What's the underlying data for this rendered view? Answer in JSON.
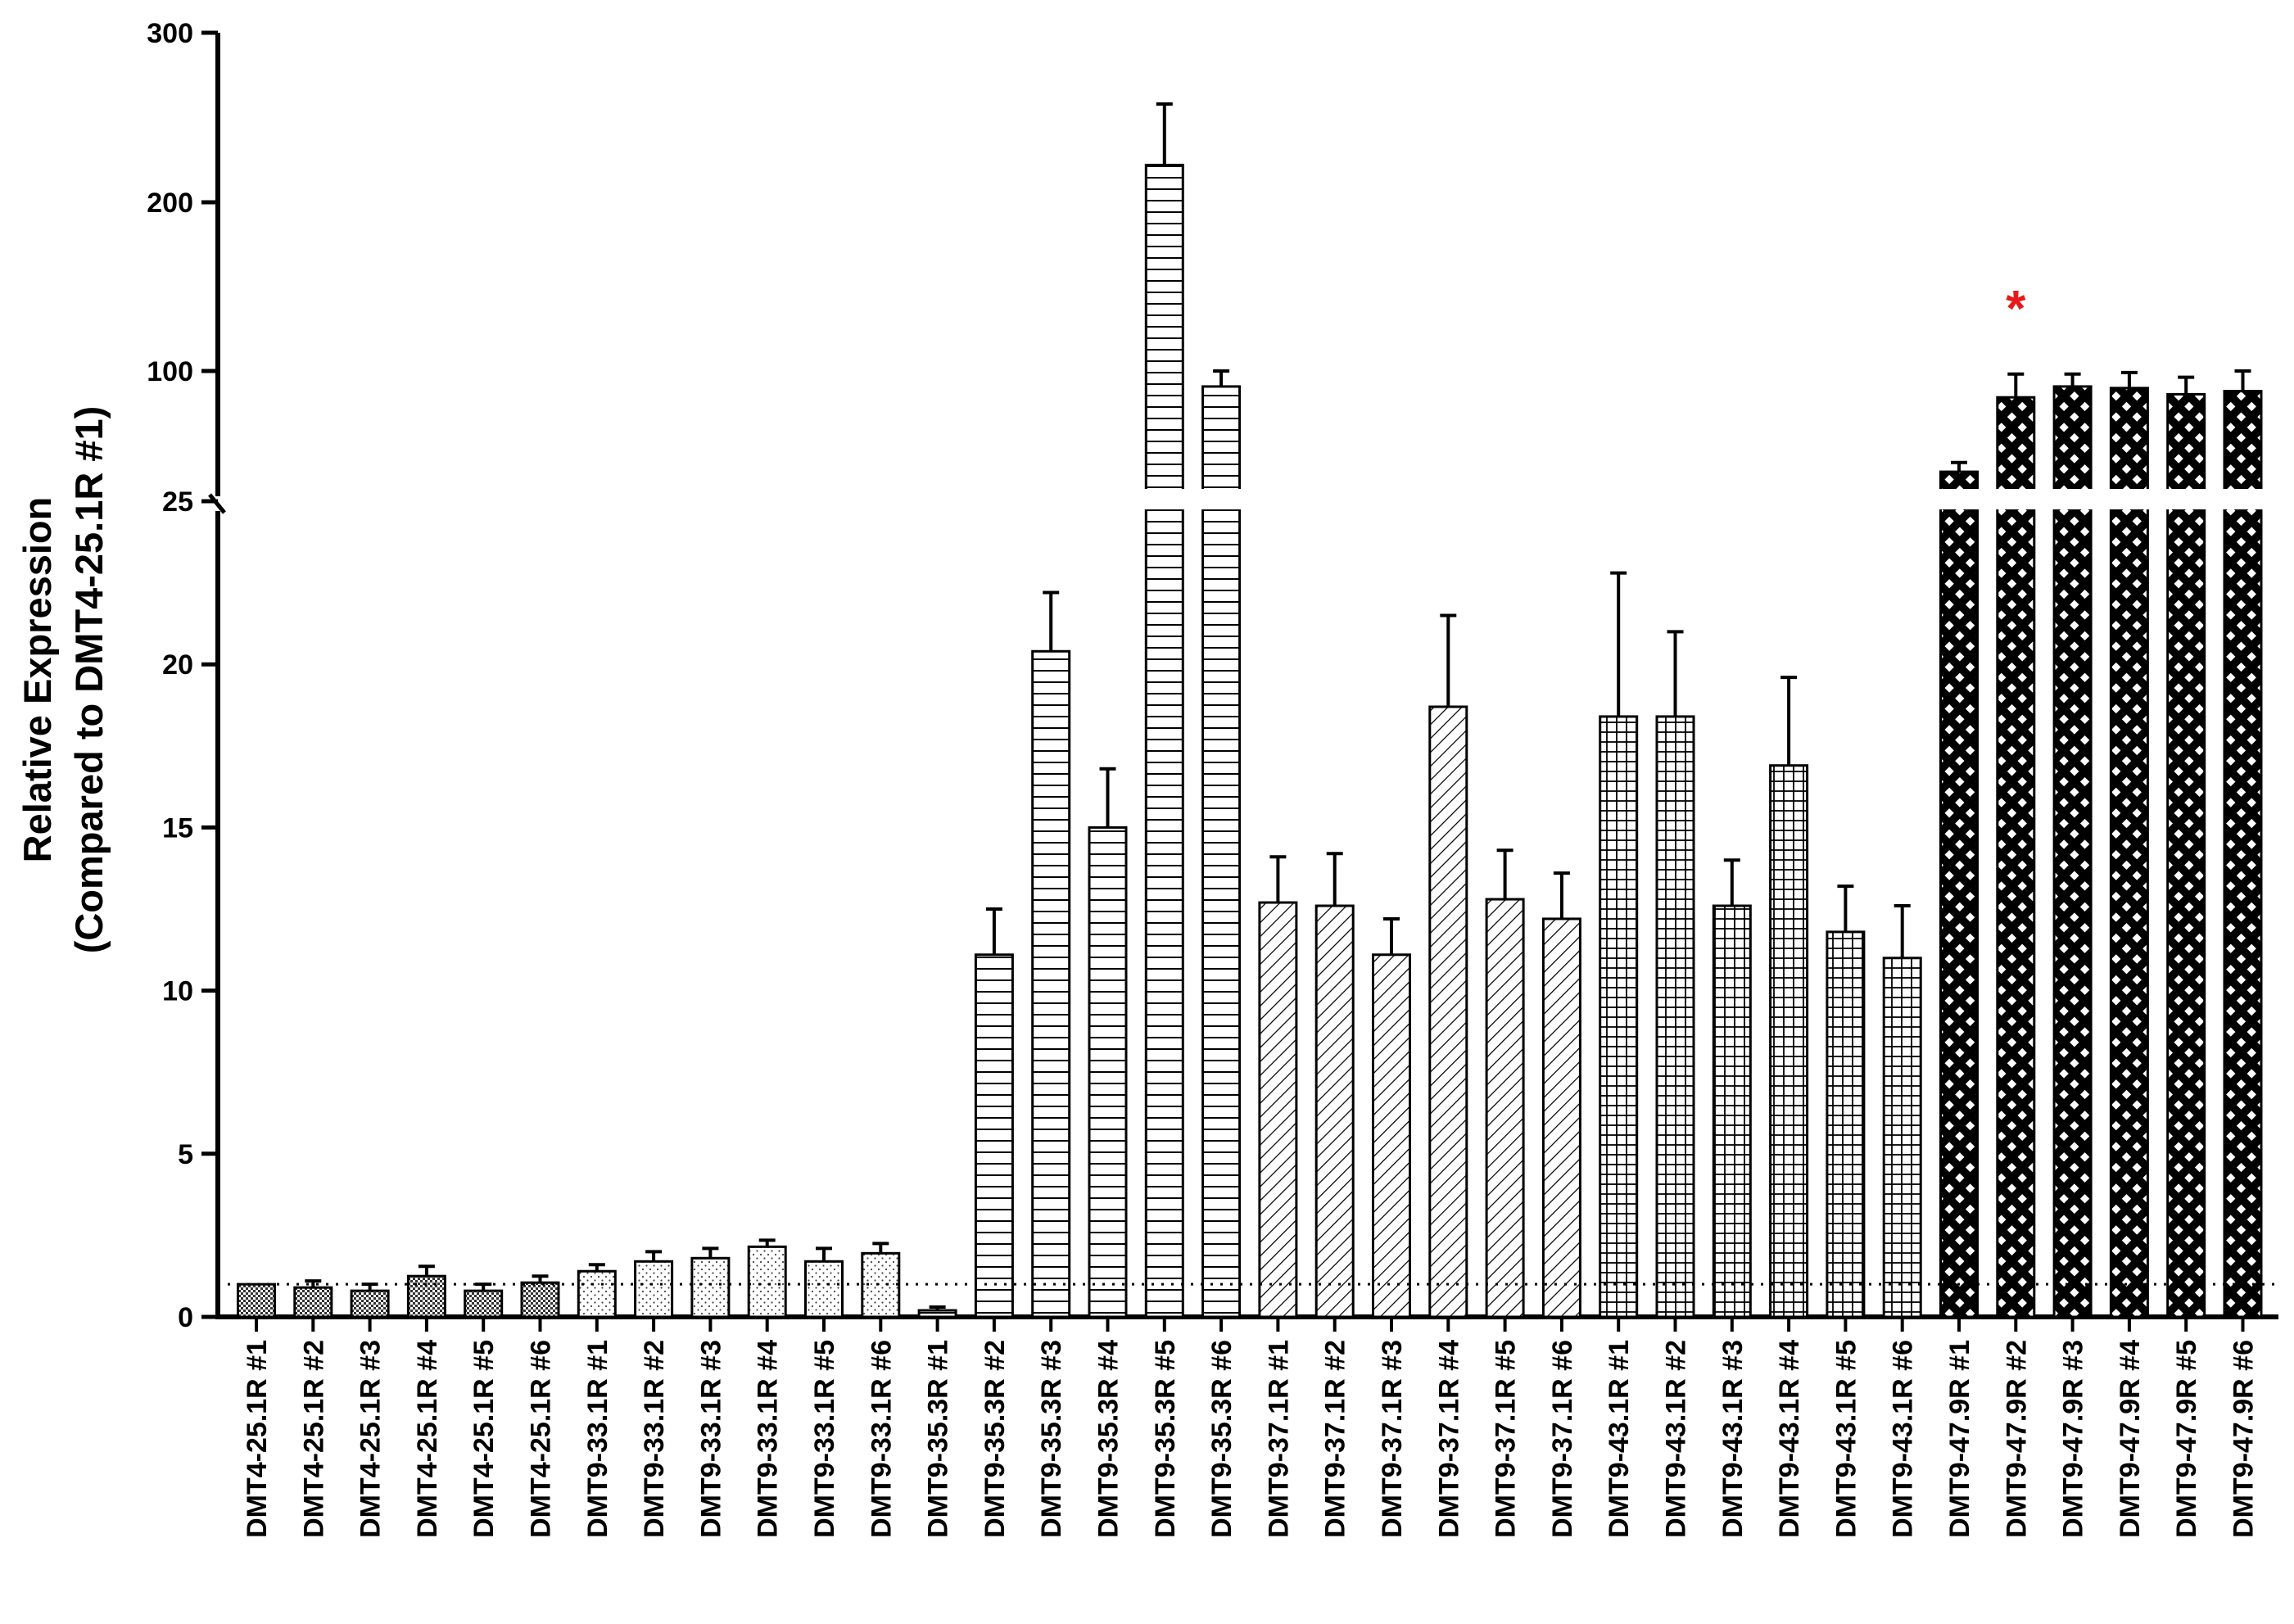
{
  "chart_data": {
    "type": "bar",
    "title": "",
    "xlabel": "",
    "ylabel_line1": "Relative Expression",
    "ylabel_line2": "(Compared to DMT4-25.1R #1)",
    "y_axis": {
      "broken": true,
      "lower_segment": {
        "range": [
          0,
          25
        ],
        "ticks": [
          0,
          5,
          10,
          15,
          20,
          25
        ]
      },
      "upper_segment": {
        "range": [
          25,
          300
        ],
        "ticks": [
          100,
          200,
          300
        ]
      }
    },
    "reference_line": {
      "value": 1,
      "style": "dotted"
    },
    "categories": [
      "DMT4-25.1R #1",
      "DMT4-25.1R #2",
      "DMT4-25.1R #3",
      "DMT4-25.1R #4",
      "DMT4-25.1R #5",
      "DMT4-25.1R #6",
      "DMT9-33.1R #1",
      "DMT9-33.1R #2",
      "DMT9-33.1R #3",
      "DMT9-33.1R #4",
      "DMT9-33.1R #5",
      "DMT9-33.1R #6",
      "DMT9-35.3R #1",
      "DMT9-35.3R #2",
      "DMT9-35.3R #3",
      "DMT9-35.3R #4",
      "DMT9-35.3R #5",
      "DMT9-35.3R #6",
      "DMT9-37.1R #1",
      "DMT9-37.1R #2",
      "DMT9-37.1R #3",
      "DMT9-37.1R #4",
      "DMT9-37.1R #5",
      "DMT9-37.1R #6",
      "DMT9-43.1R #1",
      "DMT9-43.1R #2",
      "DMT9-43.1R #3",
      "DMT9-43.1R #4",
      "DMT9-43.1R #5",
      "DMT9-43.1R #6",
      "DMT9-47.9R #1",
      "DMT9-47.9R #2",
      "DMT9-47.9R #3",
      "DMT9-47.9R #4",
      "DMT9-47.9R #5",
      "DMT9-47.9R #6"
    ],
    "values": [
      1.0,
      0.9,
      0.8,
      1.25,
      0.8,
      1.05,
      1.4,
      1.7,
      1.8,
      2.15,
      1.7,
      1.95,
      0.2,
      11.1,
      20.4,
      15.0,
      222,
      90,
      12.7,
      12.6,
      11.1,
      18.7,
      12.8,
      12.2,
      18.4,
      18.4,
      12.6,
      16.9,
      11.8,
      11.0,
      35,
      83,
      90,
      89,
      85,
      87
    ],
    "errors": [
      0,
      0.2,
      0.2,
      0.3,
      0.2,
      0.2,
      0.2,
      0.3,
      0.3,
      0.2,
      0.4,
      0.3,
      0.1,
      1.4,
      1.8,
      1.8,
      36,
      10,
      1.4,
      1.6,
      1.1,
      2.8,
      1.5,
      1.4,
      4.4,
      2.6,
      1.4,
      2.7,
      1.4,
      1.6,
      6,
      15,
      8,
      10,
      11,
      13
    ],
    "patterns": [
      "checker",
      "checker",
      "checker",
      "checker",
      "checker",
      "checker",
      "dots",
      "dots",
      "dots",
      "dots",
      "dots",
      "dots",
      "hlines",
      "hlines",
      "hlines",
      "hlines",
      "hlines",
      "hlines",
      "diag",
      "diag",
      "diag",
      "diag",
      "diag",
      "diag",
      "grid",
      "grid",
      "grid",
      "grid",
      "grid",
      "grid",
      "crosshatch",
      "crosshatch",
      "crosshatch",
      "crosshatch",
      "crosshatch",
      "crosshatch"
    ],
    "annotations": [
      {
        "category_index": 31,
        "text": "*",
        "color": "#e8191a"
      }
    ]
  }
}
